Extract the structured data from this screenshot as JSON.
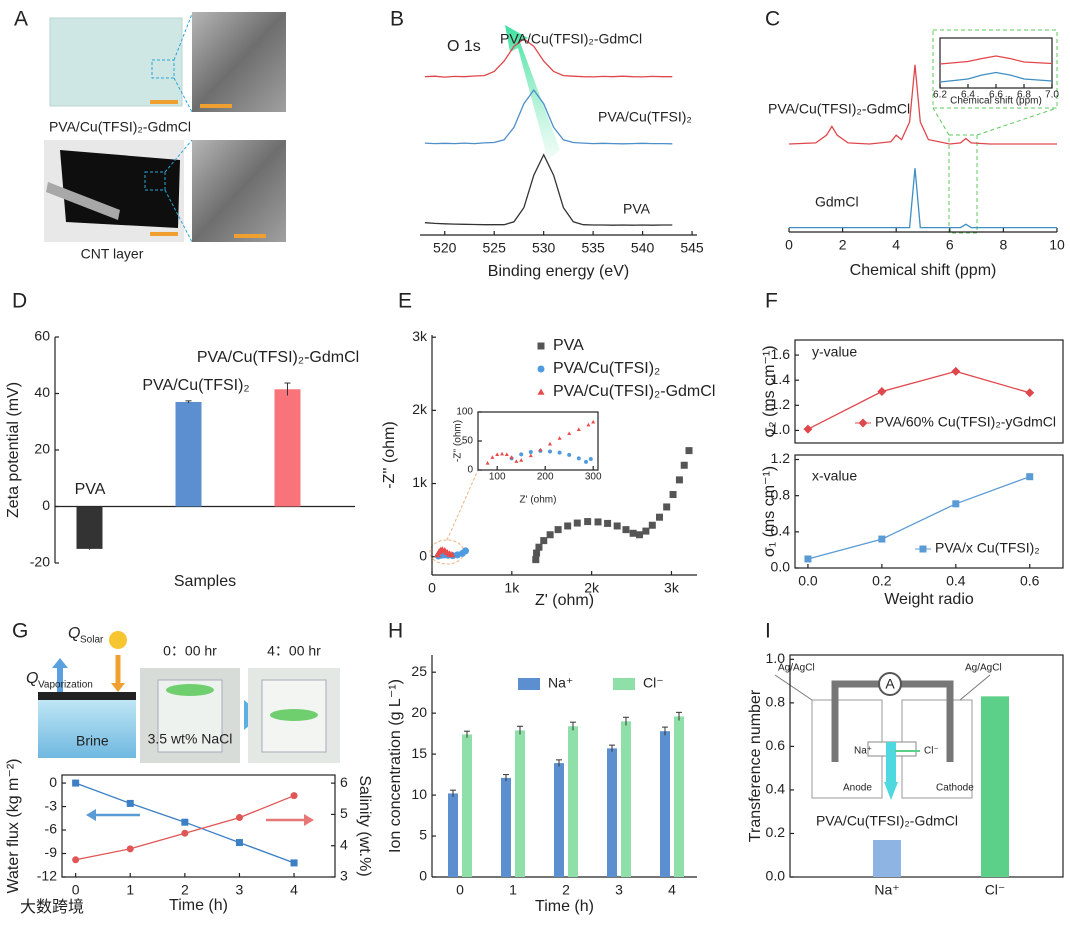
{
  "watermark": "大数跨境",
  "chart_data": [
    {
      "type": "image",
      "panel": "A",
      "captions": [
        "PVA/Cu(TFSI)₂-GdmCl",
        "CNT layer"
      ]
    },
    {
      "type": "line",
      "panel": "B",
      "annotations": [
        "O 1s"
      ],
      "xlabel": "Binding energy (eV)",
      "x": [
        518,
        519,
        520,
        521,
        522,
        523,
        524,
        525,
        526,
        527,
        528,
        529,
        530,
        531,
        532,
        533,
        534,
        535,
        536,
        537,
        538,
        539,
        540,
        541,
        542,
        543
      ],
      "xlim": [
        517.5,
        545.5
      ],
      "xticks": [
        520,
        525,
        530,
        535,
        540,
        545
      ],
      "ylim": [
        0,
        10
      ],
      "series": [
        {
          "name": "PVA/Cu(TFSI)₂-GdmCl",
          "color": "#e0474c",
          "values": [
            7.1,
            7.12,
            7.08,
            7.11,
            7.1,
            7.13,
            7.15,
            7.33,
            7.8,
            8.46,
            8.8,
            8.46,
            7.8,
            7.33,
            7.15,
            7.12,
            7.1,
            7.09,
            7.11,
            7.1,
            7.12,
            7.1,
            7.09,
            7.11,
            7.1,
            7.1
          ]
        },
        {
          "name": "PVA/Cu(TFSI)₂",
          "color": "#4f8fc9",
          "values": [
            4.12,
            4.1,
            4.11,
            4.1,
            4.12,
            4.1,
            4.13,
            4.15,
            4.27,
            4.83,
            5.89,
            6.5,
            5.89,
            4.83,
            4.27,
            4.15,
            4.12,
            4.1,
            4.11,
            4.1,
            4.09,
            4.1,
            4.11,
            4.1,
            4.1,
            4.09
          ]
        },
        {
          "name": "PVA",
          "color": "#333333",
          "values": [
            0.55,
            0.52,
            0.5,
            0.49,
            0.48,
            0.47,
            0.46,
            0.46,
            0.46,
            0.59,
            1.23,
            2.68,
            3.6,
            2.68,
            1.23,
            0.59,
            0.46,
            0.45,
            0.45,
            0.44,
            0.45,
            0.44,
            0.45,
            0.44,
            0.45,
            0.45
          ]
        }
      ]
    },
    {
      "type": "line",
      "panel": "C",
      "xlabel": "Chemical shift (ppm)",
      "x": [
        0,
        1,
        1.4,
        1.6,
        1.8,
        2.2,
        3,
        3.8,
        4,
        4.2,
        4.5,
        4.7,
        4.9,
        5.2,
        6,
        6.4,
        6.6,
        6.8,
        7.5,
        10
      ],
      "xlim": [
        0,
        10
      ],
      "xticks": [
        0,
        2,
        4,
        6,
        8,
        10
      ],
      "ylim": [
        0,
        10
      ],
      "series": [
        {
          "name": "PVA/Cu(TFSI)₂-GdmCl",
          "color": "#e0474c",
          "values": [
            4.0,
            4.05,
            4.4,
            4.8,
            4.4,
            4.05,
            4.0,
            4.1,
            4.4,
            4.2,
            5.0,
            7.6,
            5.0,
            4.2,
            4.0,
            4.05,
            4.25,
            4.05,
            4.0,
            4.0
          ]
        },
        {
          "name": "GdmCl",
          "color": "#3d8fc4",
          "values": [
            0.2,
            0.2,
            0.2,
            0.2,
            0.2,
            0.2,
            0.2,
            0.2,
            0.2,
            0.2,
            0.2,
            2.9,
            0.2,
            0.2,
            0.2,
            0.2,
            0.35,
            0.2,
            0.2,
            0.2
          ]
        }
      ],
      "inset": {
        "type": "line",
        "xlabel": "Chemical shift (ppm)",
        "x": [
          6.2,
          6.4,
          6.5,
          6.6,
          6.7,
          6.8,
          7.0
        ],
        "xlim": [
          6.2,
          7.0
        ],
        "xticks": [
          6.2,
          6.4,
          6.6,
          6.8,
          {
            "value": 7,
            "label": "7.0"
          }
        ],
        "ylim": [
          0,
          10
        ],
        "series": [
          {
            "color": "#e0474c",
            "values": [
              4.8,
              5.3,
              5.9,
              6.4,
              5.9,
              5.2,
              4.9
            ]
          },
          {
            "color": "#3d8fc4",
            "values": [
              1.2,
              1.8,
              2.6,
              3.1,
              2.6,
              1.8,
              1.4
            ]
          }
        ]
      }
    },
    {
      "type": "bar",
      "panel": "D",
      "xlabel": "Samples",
      "ylabel": "Zeta potential (mV)",
      "categories": [
        "PVA",
        "PVA/Cu(TFSI)₂",
        "PVA/Cu(TFSI)₂-GdmCl"
      ],
      "values": [
        -15,
        37,
        41.5
      ],
      "errors": [
        0.3,
        0.4,
        2.2
      ],
      "colors": [
        "#333333",
        "#5b8fcf",
        "#f8737a"
      ],
      "ylim": [
        -20,
        60
      ],
      "yticks": [
        -20,
        0,
        20,
        40,
        60
      ]
    },
    {
      "type": "scatter",
      "panel": "E",
      "xlabel": "Z' (ohm)",
      "ylabel": "-Z'' (ohm)",
      "xlim": [
        0,
        3320
      ],
      "xticks": [
        0,
        {
          "value": 1000,
          "label": "1k"
        },
        {
          "value": 2000,
          "label": "2k"
        },
        {
          "value": 3000,
          "label": "3k"
        }
      ],
      "ylim": [
        -250,
        3030
      ],
      "yticks": [
        0,
        {
          "value": 1000,
          "label": "1k"
        },
        {
          "value": 2000,
          "label": "2k"
        },
        {
          "value": 3000,
          "label": "3k"
        }
      ],
      "series": [
        {
          "name": "PVA",
          "color": "#555555",
          "marker": "square",
          "x": [
            1300,
            1310,
            1340,
            1400,
            1480,
            1580,
            1700,
            1820,
            1950,
            2080,
            2200,
            2320,
            2430,
            2520,
            2600,
            2680,
            2760,
            2850,
            2940,
            3020,
            3100,
            3160,
            3220
          ],
          "values": [
            -40,
            50,
            130,
            220,
            300,
            370,
            420,
            460,
            480,
            475,
            455,
            420,
            370,
            320,
            300,
            350,
            430,
            540,
            680,
            850,
            1050,
            1250,
            1450
          ]
        },
        {
          "name": "PVA/Cu(TFSI)₂",
          "color": "#4f9be0",
          "marker": "circle",
          "x": [
            80,
            120,
            160,
            200,
            260,
            320,
            380,
            420
          ],
          "values": [
            10,
            20,
            25,
            20,
            15,
            25,
            45,
            80
          ]
        },
        {
          "name": "PVA/Cu(TFSI)₂-GdmCl",
          "color": "#e84a4a",
          "marker": "triangle",
          "x": [
            70,
            90,
            110,
            130,
            160,
            190,
            220,
            250
          ],
          "values": [
            30,
            70,
            90,
            95,
            85,
            60,
            40,
            30
          ]
        }
      ],
      "inset": {
        "type": "scatter",
        "xlabel": "Z' (ohm)",
        "ylabel": "-Z'' (ohm)",
        "xlim": [
          60,
          310
        ],
        "xticks": [
          100,
          200,
          300
        ],
        "ylim": [
          0,
          100
        ],
        "yticks": [
          0,
          50,
          100
        ],
        "series": [
          {
            "color": "#4f9be0",
            "marker": "circle",
            "x": [
              130,
              150,
              170,
              190,
              210,
              230,
              250,
              270,
              285,
              295
            ],
            "values": [
              20,
              27,
              31,
              33,
              32,
              30,
              26,
              20,
              14,
              19
            ]
          },
          {
            "color": "#e84a4a",
            "marker": "triangle",
            "x": [
              80,
              90,
              100,
              110,
              120,
              130,
              140,
              150,
              170,
              190,
              210,
              230,
              250,
              270,
              290,
              300
            ],
            "values": [
              12,
              22,
              27,
              28,
              27,
              22,
              15,
              17,
              25,
              35,
              45,
              55,
              63,
              70,
              78,
              83
            ]
          }
        ]
      }
    },
    {
      "type": "line",
      "panel": "F",
      "annotations": [
        "y-value"
      ],
      "ylabel": "σ₂ (ms cm⁻¹)",
      "x": [
        0,
        0.2,
        0.4,
        0.6
      ],
      "xlim": [
        -0.035,
        0.69
      ],
      "ylim": [
        0.9,
        1.72
      ],
      "yticks": [
        {
          "value": 1,
          "label": "1.0"
        },
        1.2,
        1.4,
        1.6
      ],
      "series": [
        {
          "name": "PVA/60% Cu(TFSI)₂-yGdmCl",
          "color": "#e0474c",
          "marker": "diamond",
          "values": [
            1.01,
            1.31,
            1.47,
            1.3
          ]
        }
      ]
    },
    {
      "type": "line",
      "annotations": [
        "x-value"
      ],
      "ylabel": "σ₁ (ms cm⁻¹)",
      "xlabel": "Weight radio",
      "x": [
        0,
        0.2,
        0.4,
        0.6
      ],
      "xlim": [
        -0.035,
        0.69
      ],
      "xticks": [
        {
          "value": 0,
          "label": "0.0"
        },
        0.2,
        0.4,
        0.6
      ],
      "ylim": [
        0,
        1.25
      ],
      "yticks": [
        {
          "value": 0,
          "label": "0.0"
        },
        0.4,
        0.8,
        1.2
      ],
      "series": [
        {
          "name": "PVA/x Cu(TFSI)₂",
          "color": "#5b9bd5",
          "marker": "square",
          "values": [
            0.1,
            0.32,
            0.71,
            1.01
          ],
          "errors": [
            0.01,
            0.03,
            0.04,
            0.01
          ]
        }
      ]
    },
    {
      "type": "line",
      "panel": "G",
      "annotations": [
        "Q",
        "Solar",
        "Q",
        "Vaporization",
        "Brine",
        "0：00 hr",
        "4：00 hr",
        "3.5 wt% NaCl"
      ],
      "xlabel": "Time (h)",
      "ylabel": "Water flux (kg m⁻²)",
      "y2label": "Salinity (wt.%)",
      "x": [
        0,
        1,
        2,
        3,
        4
      ],
      "xlim": [
        -0.25,
        4.75
      ],
      "xticks": [
        0,
        1,
        2,
        3,
        4
      ],
      "ylim": [
        -12,
        1.03
      ],
      "yticks": [
        0,
        -3,
        -6,
        -9,
        -12
      ],
      "y2lim": [
        3,
        6.26
      ],
      "y2ticks": [
        3,
        4,
        5,
        6
      ],
      "series": [
        {
          "color": "#3b7fc4",
          "marker": "square",
          "values": [
            0,
            -2.6,
            -5,
            -7.6,
            -10.2
          ]
        },
        {
          "color": "#e05555",
          "marker": "circle",
          "axis": "y2",
          "values": [
            3.55,
            3.9,
            4.4,
            4.9,
            5.6
          ]
        }
      ]
    },
    {
      "type": "bar",
      "panel": "H",
      "xlabel": "Time (h)",
      "ylabel": "Ion concentration (g L⁻¹)",
      "categories": [
        "0",
        "1",
        "2",
        "3",
        "4"
      ],
      "ylim": [
        0,
        27.1
      ],
      "yticks": [
        0,
        5,
        10,
        15,
        20,
        25
      ],
      "series": [
        {
          "name": "Na⁺",
          "color": "#5b8fcf",
          "values": [
            10.2,
            12.1,
            13.9,
            15.7,
            17.8
          ],
          "errors": [
            0.4,
            0.4,
            0.4,
            0.4,
            0.5
          ]
        },
        {
          "name": "Cl⁻",
          "color": "#8fe0a8",
          "values": [
            17.4,
            17.9,
            18.4,
            19.0,
            19.6
          ],
          "errors": [
            0.4,
            0.5,
            0.5,
            0.5,
            0.5
          ]
        }
      ]
    },
    {
      "type": "bar",
      "panel": "I",
      "ylabel": "Transference number",
      "annotations": [
        "Ag/AgCl",
        "Ag/AgCl",
        "A",
        "Na⁺",
        "Cl⁻",
        "Anode",
        "Cathode",
        "PVA/Cu(TFSI)₂-GdmCl"
      ],
      "categories": [
        "Na⁺",
        "Cl⁻"
      ],
      "values": [
        0.17,
        0.83
      ],
      "colors": [
        "#8db4e2",
        "#5ccf88"
      ],
      "ylim": [
        0,
        1.02
      ],
      "yticks": [
        {
          "value": 0,
          "label": "0.0"
        },
        0.2,
        0.4,
        0.6,
        0.8,
        {
          "value": 1,
          "label": "1.0"
        }
      ]
    }
  ]
}
